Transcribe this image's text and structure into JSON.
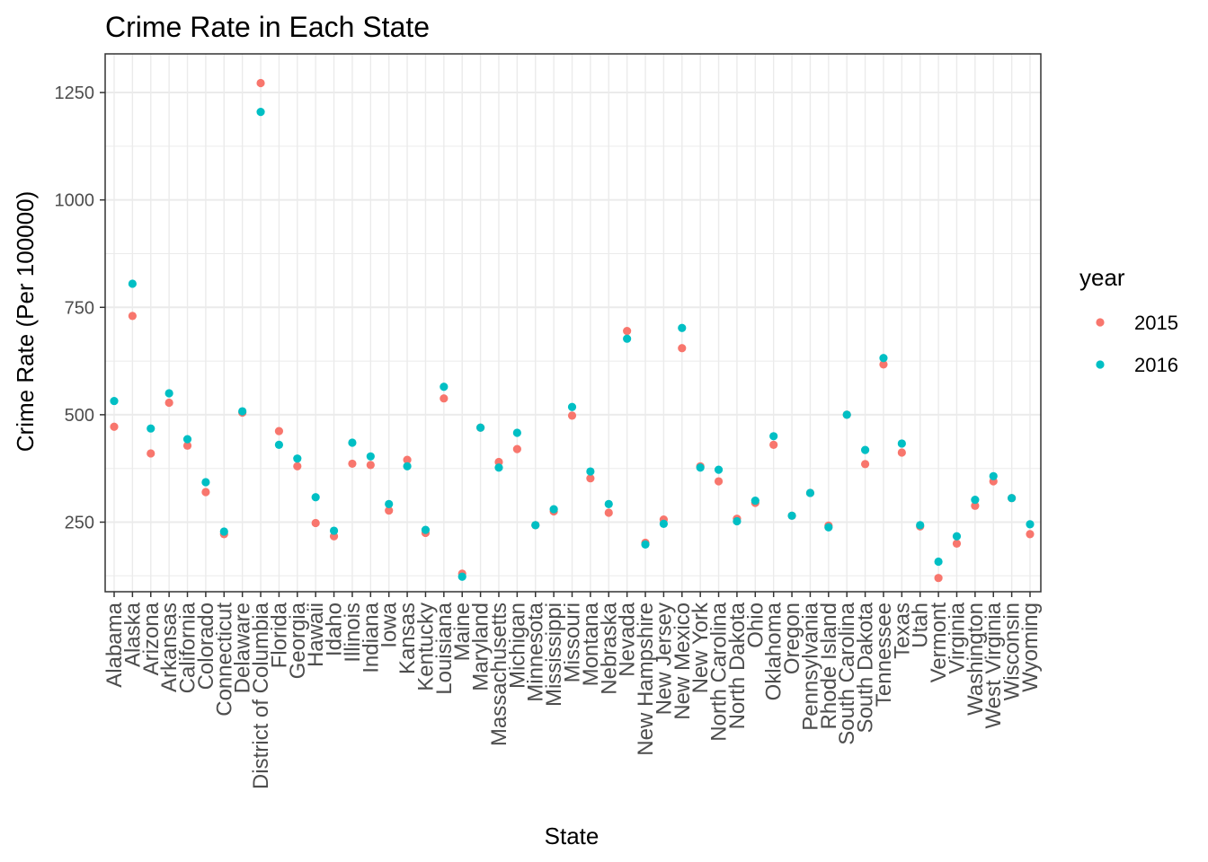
{
  "chart_data": {
    "type": "scatter",
    "title": "Crime Rate in Each State",
    "xlabel": "State",
    "ylabel": "Crime Rate (Per 100000)",
    "ylim": [
      88,
      1340
    ],
    "yticks": [
      250,
      500,
      750,
      1000,
      1250
    ],
    "grid": true,
    "legend": {
      "title": "year",
      "position": "right"
    },
    "categories": [
      "Alabama",
      "Alaska",
      "Arizona",
      "Arkansas",
      "California",
      "Colorado",
      "Connecticut",
      "Delaware",
      "District of Columbia",
      "Florida",
      "Georgia",
      "Hawaii",
      "Idaho",
      "Illinois",
      "Indiana",
      "Iowa",
      "Kansas",
      "Kentucky",
      "Louisiana",
      "Maine",
      "Maryland",
      "Massachusetts",
      "Michigan",
      "Minnesota",
      "Mississippi",
      "Missouri",
      "Montana",
      "Nebraska",
      "Nevada",
      "New Hampshire",
      "New Jersey",
      "New Mexico",
      "New York",
      "North Carolina",
      "North Dakota",
      "Ohio",
      "Oklahoma",
      "Oregon",
      "Pennsylvania",
      "Rhode Island",
      "South Carolina",
      "South Dakota",
      "Tennessee",
      "Texas",
      "Utah",
      "Vermont",
      "Virginia",
      "Washington",
      "West Virginia",
      "Wisconsin",
      "Wyoming"
    ],
    "series": [
      {
        "name": "2015",
        "color": "#F8766D",
        "values": [
          [
            0,
            472
          ],
          [
            1,
            730
          ],
          [
            2,
            410
          ],
          [
            3,
            528
          ],
          [
            4,
            428
          ],
          [
            5,
            320
          ],
          [
            6,
            222
          ],
          [
            7,
            505
          ],
          [
            8,
            1272
          ],
          [
            9,
            462
          ],
          [
            10,
            380
          ],
          [
            11,
            248
          ],
          [
            12,
            217
          ],
          [
            13,
            386
          ],
          [
            14,
            383
          ],
          [
            15,
            277
          ],
          [
            16,
            395
          ],
          [
            17,
            225
          ],
          [
            18,
            538
          ],
          [
            19,
            130
          ],
          [
            20,
            470
          ],
          [
            21,
            390
          ],
          [
            22,
            420
          ],
          [
            23,
            243
          ],
          [
            24,
            275
          ],
          [
            25,
            498
          ],
          [
            26,
            352
          ],
          [
            27,
            272
          ],
          [
            28,
            695
          ],
          [
            29,
            202
          ],
          [
            30,
            256
          ],
          [
            31,
            655
          ],
          [
            32,
            380
          ],
          [
            33,
            345
          ],
          [
            34,
            258
          ],
          [
            35,
            295
          ],
          [
            36,
            430
          ],
          [
            37,
            265
          ],
          [
            38,
            318
          ],
          [
            39,
            242
          ],
          [
            40,
            500
          ],
          [
            41,
            385
          ],
          [
            42,
            617
          ],
          [
            43,
            412
          ],
          [
            44,
            240
          ],
          [
            45,
            120
          ],
          [
            46,
            200
          ],
          [
            47,
            288
          ],
          [
            48,
            345
          ],
          [
            49,
            306
          ],
          [
            50,
            222
          ]
        ]
      },
      {
        "name": "2016",
        "color": "#00BFC4",
        "values": [
          [
            0,
            532
          ],
          [
            1,
            805
          ],
          [
            2,
            468
          ],
          [
            3,
            550
          ],
          [
            4,
            443
          ],
          [
            5,
            343
          ],
          [
            6,
            228
          ],
          [
            7,
            508
          ],
          [
            8,
            1205
          ],
          [
            9,
            430
          ],
          [
            10,
            398
          ],
          [
            11,
            308
          ],
          [
            12,
            230
          ],
          [
            13,
            435
          ],
          [
            14,
            403
          ],
          [
            15,
            292
          ],
          [
            16,
            380
          ],
          [
            17,
            232
          ],
          [
            18,
            565
          ],
          [
            19,
            123
          ],
          [
            20,
            470
          ],
          [
            21,
            377
          ],
          [
            22,
            458
          ],
          [
            23,
            243
          ],
          [
            24,
            280
          ],
          [
            25,
            518
          ],
          [
            26,
            368
          ],
          [
            27,
            292
          ],
          [
            28,
            677
          ],
          [
            29,
            198
          ],
          [
            30,
            246
          ],
          [
            31,
            702
          ],
          [
            32,
            377
          ],
          [
            33,
            372
          ],
          [
            34,
            252
          ],
          [
            35,
            300
          ],
          [
            36,
            450
          ],
          [
            37,
            265
          ],
          [
            38,
            318
          ],
          [
            39,
            238
          ],
          [
            40,
            500
          ],
          [
            41,
            418
          ],
          [
            42,
            632
          ],
          [
            43,
            433
          ],
          [
            44,
            243
          ],
          [
            45,
            158
          ],
          [
            46,
            217
          ],
          [
            47,
            302
          ],
          [
            48,
            357
          ],
          [
            49,
            306
          ],
          [
            50,
            245
          ]
        ]
      }
    ]
  }
}
